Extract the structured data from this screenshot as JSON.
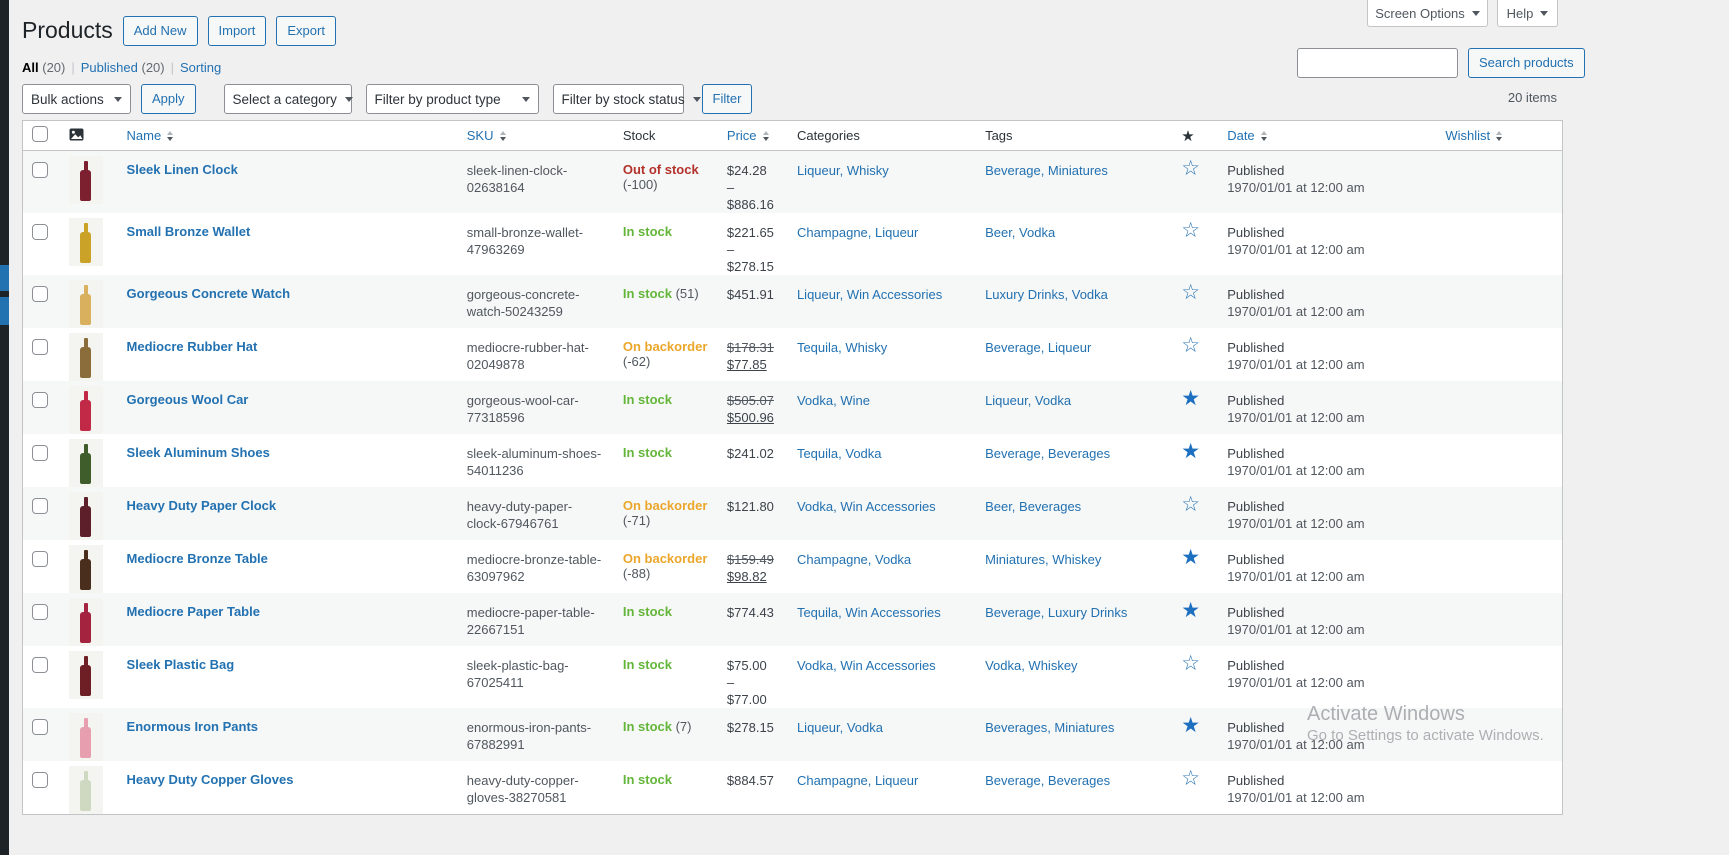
{
  "admin": {
    "screen_options_label": "Screen Options",
    "help_label": "Help"
  },
  "header": {
    "title": "Products",
    "actions": [
      {
        "label": "Add New"
      },
      {
        "label": "Import"
      },
      {
        "label": "Export"
      }
    ]
  },
  "views": {
    "all_label": "All",
    "all_count": "(20)",
    "published_label": "Published",
    "published_count": "(20)",
    "sorting_label": "Sorting",
    "separator": "|"
  },
  "search": {
    "value": "",
    "button_label": "Search products"
  },
  "toolbar": {
    "bulk_actions_label": "Bulk actions",
    "apply_label": "Apply",
    "category_label": "Select a category",
    "product_type_label": "Filter by product type",
    "stock_status_label": "Filter by stock status",
    "filter_label": "Filter",
    "items_count": "20 items"
  },
  "table": {
    "headers": {
      "name": "Name",
      "sku": "SKU",
      "stock": "Stock",
      "price": "Price",
      "categories": "Categories",
      "tags": "Tags",
      "star": "★",
      "date": "Date",
      "wishlist": "Wishlist"
    }
  },
  "rows": [
    {
      "name": "Sleek Linen Clock",
      "sku": "sleek-linen-clock-02638164",
      "stock": {
        "label": "Out of stock",
        "qty": "(-100)",
        "type": "out"
      },
      "price_parts": [
        {
          "t": "$24.28 –",
          "s": ""
        },
        {
          "t": "$886.16",
          "s": ""
        }
      ],
      "categories": "Liqueur, Whisky",
      "tags": "Beverage, Miniatures",
      "featured": false,
      "status": "Published",
      "date": "1970/01/01 at 12:00 am",
      "bottle": "#7c1f2e"
    },
    {
      "name": "Small Bronze Wallet",
      "sku": "small-bronze-wallet-47963269",
      "stock": {
        "label": "In stock",
        "qty": "",
        "type": "in"
      },
      "price_parts": [
        {
          "t": "$221.65 –",
          "s": ""
        },
        {
          "t": "$278.15",
          "s": ""
        }
      ],
      "categories": "Champagne, Liqueur",
      "tags": "Beer, Vodka",
      "featured": false,
      "status": "Published",
      "date": "1970/01/01 at 12:00 am",
      "bottle": "#c9a227"
    },
    {
      "name": "Gorgeous Concrete Watch",
      "sku": "gorgeous-concrete-watch-50243259",
      "stock": {
        "label": "In stock",
        "qty": "(51)",
        "type": "in"
      },
      "price_parts": [
        {
          "t": "$451.91",
          "s": ""
        }
      ],
      "categories": "Liqueur, Win Accessories",
      "tags": "Luxury Drinks, Vodka",
      "featured": false,
      "status": "Published",
      "date": "1970/01/01 at 12:00 am",
      "bottle": "#d9b05e"
    },
    {
      "name": "Mediocre Rubber Hat",
      "sku": "mediocre-rubber-hat-02049878",
      "stock": {
        "label": "On backorder",
        "qty": "(-62)",
        "type": "back"
      },
      "price_parts": [
        {
          "t": "$178.31",
          "s": "del"
        },
        {
          "t": "$77.85",
          "s": "ins"
        }
      ],
      "categories": "Tequila, Whisky",
      "tags": "Beverage, Liqueur",
      "featured": false,
      "status": "Published",
      "date": "1970/01/01 at 12:00 am",
      "bottle": "#8a6d3b"
    },
    {
      "name": "Gorgeous Wool Car",
      "sku": "gorgeous-wool-car-77318596",
      "stock": {
        "label": "In stock",
        "qty": "",
        "type": "in"
      },
      "price_parts": [
        {
          "t": "$505.07",
          "s": "del"
        },
        {
          "t": "$500.96",
          "s": "ins"
        }
      ],
      "categories": "Vodka, Wine",
      "tags": "Liqueur, Vodka",
      "featured": true,
      "status": "Published",
      "date": "1970/01/01 at 12:00 am",
      "bottle": "#c22947"
    },
    {
      "name": "Sleek Aluminum Shoes",
      "sku": "sleek-aluminum-shoes-54011236",
      "stock": {
        "label": "In stock",
        "qty": "",
        "type": "in"
      },
      "price_parts": [
        {
          "t": "$241.02",
          "s": ""
        }
      ],
      "categories": "Tequila, Vodka",
      "tags": "Beverage, Beverages",
      "featured": true,
      "status": "Published",
      "date": "1970/01/01 at 12:00 am",
      "bottle": "#3f5d2a"
    },
    {
      "name": "Heavy Duty Paper Clock",
      "sku": "heavy-duty-paper-clock-67946761",
      "stock": {
        "label": "On backorder",
        "qty": "(-71)",
        "type": "back"
      },
      "price_parts": [
        {
          "t": "$121.80",
          "s": ""
        }
      ],
      "categories": "Vodka, Win Accessories",
      "tags": "Beer, Beverages",
      "featured": false,
      "status": "Published",
      "date": "1970/01/01 at 12:00 am",
      "bottle": "#5d1f2a"
    },
    {
      "name": "Mediocre Bronze Table",
      "sku": "mediocre-bronze-table-63097962",
      "stock": {
        "label": "On backorder",
        "qty": "(-88)",
        "type": "back"
      },
      "price_parts": [
        {
          "t": "$159.49",
          "s": "del"
        },
        {
          "t": "$98.82",
          "s": "ins"
        }
      ],
      "categories": "Champagne, Vodka",
      "tags": "Miniatures, Whiskey",
      "featured": true,
      "status": "Published",
      "date": "1970/01/01 at 12:00 am",
      "bottle": "#4a2e1d"
    },
    {
      "name": "Mediocre Paper Table",
      "sku": "mediocre-paper-table-22667151",
      "stock": {
        "label": "In stock",
        "qty": "",
        "type": "in"
      },
      "price_parts": [
        {
          "t": "$774.43",
          "s": ""
        }
      ],
      "categories": "Tequila, Win Accessories",
      "tags": "Beverage, Luxury Drinks",
      "featured": true,
      "status": "Published",
      "date": "1970/01/01 at 12:00 am",
      "bottle": "#a42440"
    },
    {
      "name": "Sleek Plastic Bag",
      "sku": "sleek-plastic-bag-67025411",
      "stock": {
        "label": "In stock",
        "qty": "",
        "type": "in"
      },
      "price_parts": [
        {
          "t": "$75.00 –",
          "s": ""
        },
        {
          "t": "$77.00",
          "s": ""
        }
      ],
      "categories": "Vodka, Win Accessories",
      "tags": "Vodka, Whiskey",
      "featured": false,
      "status": "Published",
      "date": "1970/01/01 at 12:00 am",
      "bottle": "#6e1f26"
    },
    {
      "name": "Enormous Iron Pants",
      "sku": "enormous-iron-pants-67882991",
      "stock": {
        "label": "In stock",
        "qty": "(7)",
        "type": "in"
      },
      "price_parts": [
        {
          "t": "$278.15",
          "s": ""
        }
      ],
      "categories": "Liqueur, Vodka",
      "tags": "Beverages, Miniatures",
      "featured": true,
      "status": "Published",
      "date": "1970/01/01 at 12:00 am",
      "bottle": "#e79fb0"
    },
    {
      "name": "Heavy Duty Copper Gloves",
      "sku": "heavy-duty-copper-gloves-38270581",
      "stock": {
        "label": "In stock",
        "qty": "",
        "type": "in"
      },
      "price_parts": [
        {
          "t": "$884.57",
          "s": ""
        }
      ],
      "categories": "Champagne, Liqueur",
      "tags": "Beverage, Beverages",
      "featured": false,
      "status": "Published",
      "date": "1970/01/01 at 12:00 am",
      "bottle": "#cfd8c0"
    }
  ],
  "watermark": {
    "line1": "Activate Windows",
    "line2": "Go to Settings to activate Windows."
  },
  "colors": {
    "accent_blue": "#2271b1",
    "in_stock_green": "#64b63a",
    "out_of_stock_red": "#b3322c",
    "backorder_orange": "#eba62b",
    "star_blue": "#1d6fc0",
    "admin_menu_dark": "#1d2327"
  }
}
